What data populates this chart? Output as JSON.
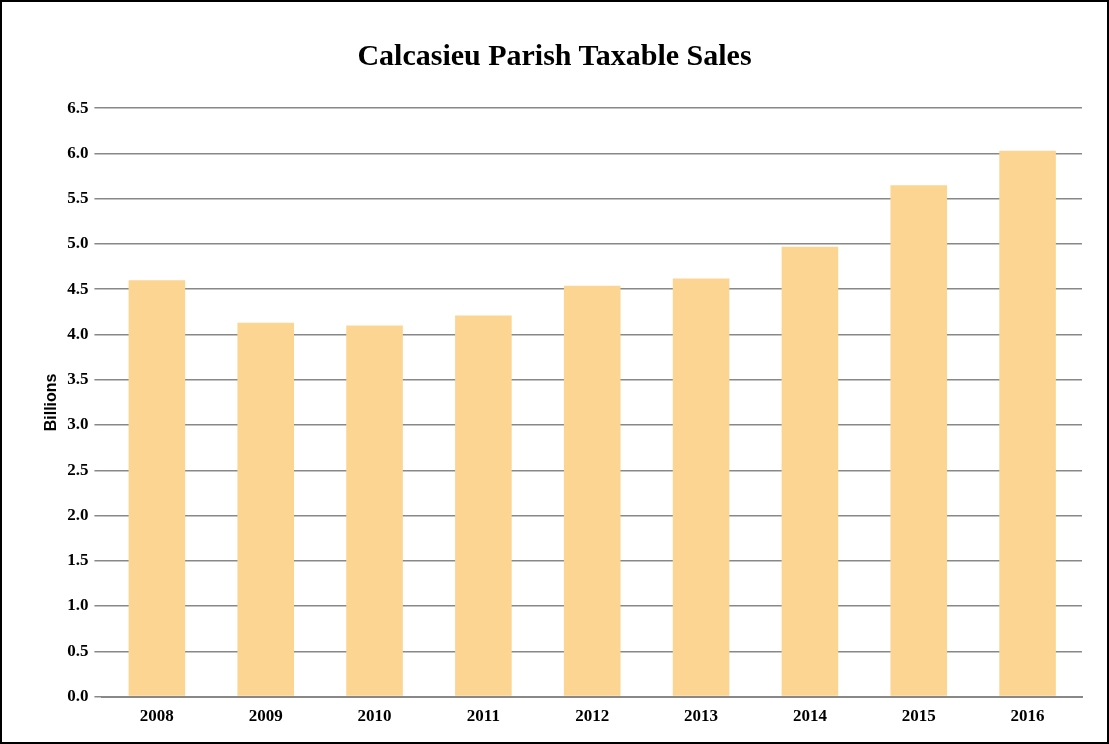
{
  "chart_data": {
    "type": "bar",
    "title": "Calcasieu Parish Taxable Sales",
    "ylabel": "Billions",
    "categories": [
      "2008",
      "2009",
      "2010",
      "2011",
      "2012",
      "2013",
      "2014",
      "2015",
      "2016"
    ],
    "values": [
      4.6,
      4.13,
      4.1,
      4.21,
      4.54,
      4.62,
      4.97,
      5.65,
      6.03
    ],
    "color": "#fdd592",
    "ylim": [
      0,
      6.5
    ],
    "yticks": [
      {
        "value": 0,
        "label": "0.0"
      },
      {
        "value": 0.5,
        "label": "0.5"
      },
      {
        "value": 1,
        "label": "1.0"
      },
      {
        "value": 1.5,
        "label": "1.5"
      },
      {
        "value": 2,
        "label": "2.0"
      },
      {
        "value": 2.5,
        "label": "2.5"
      },
      {
        "value": 3,
        "label": "3.0"
      },
      {
        "value": 3.5,
        "label": "3.5"
      },
      {
        "value": 4,
        "label": "4.0"
      },
      {
        "value": 4.5,
        "label": "4.5"
      },
      {
        "value": 5,
        "label": "5.0"
      },
      {
        "value": 5.5,
        "label": "5.5"
      },
      {
        "value": 6,
        "label": "6.0"
      },
      {
        "value": 6.5,
        "label": "6.5"
      }
    ],
    "grid": "y",
    "legend": false
  }
}
